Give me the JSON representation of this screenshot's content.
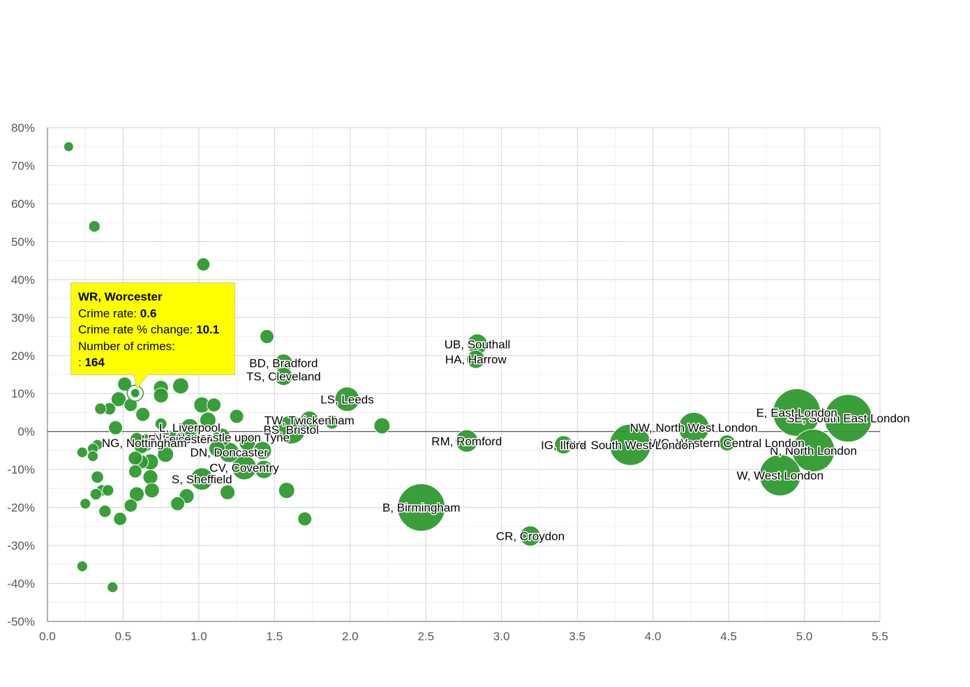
{
  "chart_data": {
    "type": "scatter",
    "subtype": "bubble",
    "title": "",
    "xlabel": "",
    "ylabel": "",
    "xlim": [
      0,
      5.5
    ],
    "ylim": [
      -50,
      80
    ],
    "x_ticks": [
      "0.0",
      "0.5",
      "1.0",
      "1.5",
      "2.0",
      "2.5",
      "3.0",
      "3.5",
      "4.0",
      "4.5",
      "5.0",
      "5.5"
    ],
    "y_ticks": [
      "-50%",
      "-40%",
      "-30%",
      "-20%",
      "-10%",
      "0%",
      "10%",
      "20%",
      "30%",
      "40%",
      "50%",
      "60%",
      "70%",
      "80%"
    ],
    "grid": true,
    "bubble_color": "#2e9a2e",
    "x_tick_values": [
      0,
      0.5,
      1,
      1.5,
      2,
      2.5,
      3,
      3.5,
      4,
      4.5,
      5,
      5.5
    ],
    "y_tick_values": [
      -50,
      -40,
      -30,
      -20,
      -10,
      0,
      10,
      20,
      30,
      40,
      50,
      60,
      70,
      80
    ],
    "points": [
      {
        "x": 5.29,
        "y": 3.5,
        "size": 1.0,
        "label": "SE, South East London"
      },
      {
        "x": 4.95,
        "y": 5,
        "size": 1.0,
        "label": "E, East London"
      },
      {
        "x": 5.06,
        "y": -5,
        "size": 0.88,
        "label": "N, North London"
      },
      {
        "x": 4.84,
        "y": -11.5,
        "size": 0.85,
        "label": "W, West London"
      },
      {
        "x": 4.27,
        "y": 1,
        "size": 0.6,
        "label": "NW, North West London"
      },
      {
        "x": 4.49,
        "y": -3,
        "size": 0.25,
        "label": "WC, Western Central London"
      },
      {
        "x": 3.85,
        "y": -3.5,
        "size": 0.85,
        "label": "SW, South West London"
      },
      {
        "x": 3.41,
        "y": -3.5,
        "size": 0.3,
        "label": "IG, Ilford"
      },
      {
        "x": 3.19,
        "y": -27.5,
        "size": 0.35,
        "label": "CR, Croydon"
      },
      {
        "x": 2.77,
        "y": -2.5,
        "size": 0.4,
        "label": "RM, Romford"
      },
      {
        "x": 2.84,
        "y": 23,
        "size": 0.35,
        "label": "UB, Southall"
      },
      {
        "x": 2.83,
        "y": 19,
        "size": 0.3,
        "label": "HA, Harrow"
      },
      {
        "x": 2.47,
        "y": -20,
        "size": 1.0,
        "label": "B, Birmingham"
      },
      {
        "x": 2.21,
        "y": 1.5,
        "size": 0.25,
        "label": ""
      },
      {
        "x": 1.98,
        "y": 8.5,
        "size": 0.45,
        "label": "LS, Leeds"
      },
      {
        "x": 1.88,
        "y": 2.5,
        "size": 0.2,
        "label": ""
      },
      {
        "x": 1.73,
        "y": 3,
        "size": 0.3,
        "label": "TW, Twickenham"
      },
      {
        "x": 1.61,
        "y": 0.5,
        "size": 0.55,
        "label": "BS, Bristol"
      },
      {
        "x": 1.56,
        "y": 18,
        "size": 0.3,
        "label": "BD, Bradford"
      },
      {
        "x": 1.56,
        "y": 14.5,
        "size": 0.3,
        "label": "TS, Cleveland"
      },
      {
        "x": 1.45,
        "y": 25,
        "size": 0.2,
        "label": ""
      },
      {
        "x": 1.58,
        "y": -15.5,
        "size": 0.25,
        "label": ""
      },
      {
        "x": 1.7,
        "y": -23,
        "size": 0.2,
        "label": ""
      },
      {
        "x": 1.42,
        "y": -5,
        "size": 0.3,
        "label": ""
      },
      {
        "x": 1.43,
        "y": -10,
        "size": 0.3,
        "label": ""
      },
      {
        "x": 1.3,
        "y": -9.5,
        "size": 0.45,
        "label": "CV, Coventry"
      },
      {
        "x": 1.19,
        "y": -16,
        "size": 0.22,
        "label": ""
      },
      {
        "x": 1.25,
        "y": 4,
        "size": 0.2,
        "label": ""
      },
      {
        "x": 1.1,
        "y": 7,
        "size": 0.2,
        "label": ""
      },
      {
        "x": 1.02,
        "y": 7,
        "size": 0.25,
        "label": ""
      },
      {
        "x": 1.03,
        "y": 44,
        "size": 0.18,
        "label": ""
      },
      {
        "x": 1.06,
        "y": 3,
        "size": 0.25,
        "label": ""
      },
      {
        "x": 0.88,
        "y": 12,
        "size": 0.25,
        "label": ""
      },
      {
        "x": 0.94,
        "y": 1,
        "size": 0.3,
        "label": "L, Liverpool"
      },
      {
        "x": 1.02,
        "y": -12.5,
        "size": 0.4,
        "label": "S, Sheffield"
      },
      {
        "x": 1.2,
        "y": -5.5,
        "size": 0.35,
        "label": "DN, Doncaster"
      },
      {
        "x": 1.12,
        "y": -4.5,
        "size": 0.25,
        "label": ""
      },
      {
        "x": 1.32,
        "y": -3,
        "size": 0.25,
        "label": ""
      },
      {
        "x": 1.15,
        "y": -1.5,
        "size": 0.3,
        "label": "NE, Newcastle upon Tyne"
      },
      {
        "x": 0.85,
        "y": -2,
        "size": 0.3,
        "label": "LE, Leicester"
      },
      {
        "x": 0.88,
        "y": -2.5,
        "size": 0.2,
        "label": ""
      },
      {
        "x": 0.92,
        "y": -17,
        "size": 0.22,
        "label": ""
      },
      {
        "x": 0.86,
        "y": -19,
        "size": 0.2,
        "label": ""
      },
      {
        "x": 0.75,
        "y": 11.5,
        "size": 0.22,
        "label": ""
      },
      {
        "x": 0.75,
        "y": 9.5,
        "size": 0.22,
        "label": ""
      },
      {
        "x": 0.75,
        "y": 2,
        "size": 0.15,
        "label": ""
      },
      {
        "x": 0.78,
        "y": -6,
        "size": 0.25,
        "label": ""
      },
      {
        "x": 0.68,
        "y": -8,
        "size": 0.25,
        "label": ""
      },
      {
        "x": 0.68,
        "y": -12,
        "size": 0.22,
        "label": ""
      },
      {
        "x": 0.69,
        "y": -15.5,
        "size": 0.22,
        "label": ""
      },
      {
        "x": 0.63,
        "y": 4.5,
        "size": 0.2,
        "label": ""
      },
      {
        "x": 0.64,
        "y": -3,
        "size": 0.3,
        "label": "NG, Nottingham"
      },
      {
        "x": 0.62,
        "y": -4,
        "size": 0.2,
        "label": ""
      },
      {
        "x": 0.62,
        "y": -8,
        "size": 0.2,
        "label": ""
      },
      {
        "x": 0.58,
        "y": -7,
        "size": 0.2,
        "label": ""
      },
      {
        "x": 0.58,
        "y": -10.5,
        "size": 0.18,
        "label": ""
      },
      {
        "x": 0.59,
        "y": -16.5,
        "size": 0.22,
        "label": ""
      },
      {
        "x": 0.55,
        "y": 7,
        "size": 0.18,
        "label": ""
      },
      {
        "x": 0.51,
        "y": 12.5,
        "size": 0.2,
        "label": ""
      },
      {
        "x": 0.47,
        "y": 8.5,
        "size": 0.22,
        "label": ""
      },
      {
        "x": 0.59,
        "y": -2,
        "size": 0.18,
        "label": ""
      },
      {
        "x": 0.55,
        "y": -19.5,
        "size": 0.18,
        "label": ""
      },
      {
        "x": 0.48,
        "y": -23,
        "size": 0.18,
        "label": ""
      },
      {
        "x": 0.45,
        "y": 1,
        "size": 0.2,
        "label": ""
      },
      {
        "x": 0.41,
        "y": 6,
        "size": 0.16,
        "label": ""
      },
      {
        "x": 0.35,
        "y": 6,
        "size": 0.14,
        "label": ""
      },
      {
        "x": 0.33,
        "y": -3.5,
        "size": 0.12,
        "label": ""
      },
      {
        "x": 0.3,
        "y": -4.5,
        "size": 0.12,
        "label": ""
      },
      {
        "x": 0.3,
        "y": -6.5,
        "size": 0.12,
        "label": ""
      },
      {
        "x": 0.23,
        "y": -5.5,
        "size": 0.12,
        "label": ""
      },
      {
        "x": 0.33,
        "y": -12,
        "size": 0.16,
        "label": ""
      },
      {
        "x": 0.36,
        "y": -15.5,
        "size": 0.14,
        "label": ""
      },
      {
        "x": 0.32,
        "y": -16.5,
        "size": 0.14,
        "label": ""
      },
      {
        "x": 0.4,
        "y": -15.5,
        "size": 0.14,
        "label": ""
      },
      {
        "x": 0.38,
        "y": -21,
        "size": 0.16,
        "label": ""
      },
      {
        "x": 0.25,
        "y": -19,
        "size": 0.12,
        "label": ""
      },
      {
        "x": 0.23,
        "y": -35.5,
        "size": 0.12,
        "label": ""
      },
      {
        "x": 0.43,
        "y": -41,
        "size": 0.12,
        "label": ""
      },
      {
        "x": 0.31,
        "y": 54,
        "size": 0.14,
        "label": ""
      },
      {
        "x": 0.14,
        "y": 75,
        "size": 0.1,
        "label": ""
      },
      {
        "x": 0.58,
        "y": 10.1,
        "size": 0.18,
        "label": "",
        "highlight": true
      }
    ],
    "tooltip": {
      "title": "WR, Worcester",
      "rate_label": "Crime rate: ",
      "rate_value": "0.6",
      "change_label": "Crime rate % change: ",
      "change_value": "10.1",
      "count_label": "Number of crimes:",
      "count_prefix": ": ",
      "count_value": "164"
    }
  }
}
